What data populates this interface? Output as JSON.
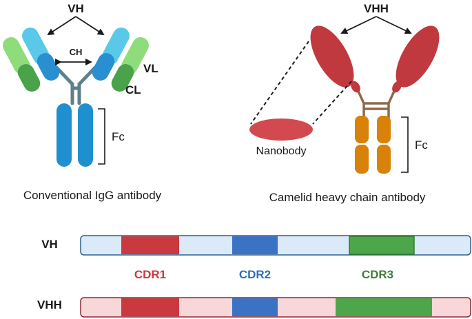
{
  "igg": {
    "label_vh": "VH",
    "label_ch": "CH",
    "label_vl": "VL",
    "label_cl": "CL",
    "label_fc": "Fc",
    "caption": "Conventional IgG antibody"
  },
  "camelid": {
    "label_vhh": "VHH",
    "label_nanobody": "Nanobody",
    "label_fc": "Fc",
    "caption": "Camelid heavy chain antibody"
  },
  "bars": {
    "vh_label": "VH",
    "vhh_label": "VHH",
    "cdr1": "CDR1",
    "cdr2": "CDR2",
    "cdr3": "CDR3"
  },
  "colors": {
    "vh_light_blue": "#5ac8e8",
    "ch_blue": "#2a8fd0",
    "fc_blue": "#1f8fcf",
    "vl_light_green": "#8fdc7a",
    "cl_green": "#4aa24a",
    "hinge": "#5f7f8c",
    "vhh_red": "#c0393f",
    "camel_fc_orange": "#d9820a",
    "camel_hinge": "#8c6a4a",
    "vh_bar_fill": "#dbeaf8",
    "vh_bar_border": "#2f5f8f",
    "vhh_bar_fill": "#f8d7d9",
    "vhh_bar_border": "#8a2a30",
    "cdr1": "#c9393f",
    "cdr2": "#3a72c4",
    "cdr3": "#4da64a",
    "cdr1_text": "#c9393f",
    "cdr2_text": "#2f6db8",
    "cdr3_text": "#3f7f3a"
  }
}
